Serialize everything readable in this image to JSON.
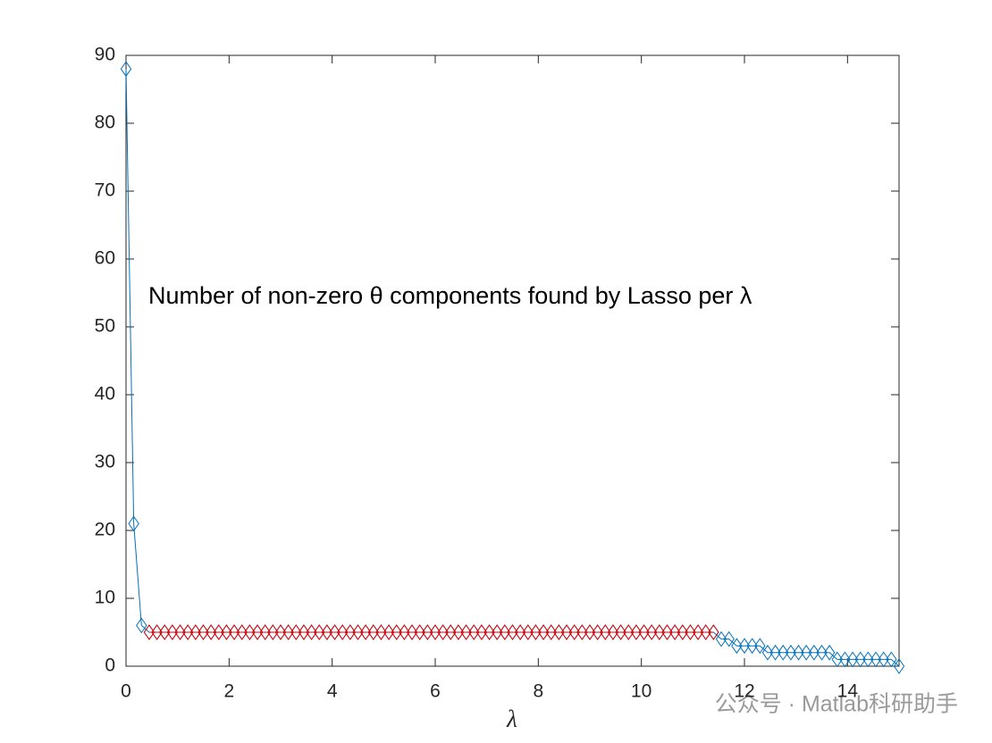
{
  "chart_data": {
    "type": "line",
    "annotation": "Number of non-zero θ components found by Lasso per λ",
    "x_label": "λ",
    "watermark": "公众号 · Matlab科研助手",
    "x": [
      0,
      0.15,
      0.3,
      0.45,
      0.6,
      0.75,
      0.9,
      1.05,
      1.2,
      1.35,
      1.5,
      1.65,
      1.8,
      1.95,
      2.1,
      2.25,
      2.4,
      2.55,
      2.7,
      2.85,
      3,
      3.15,
      3.3,
      3.45,
      3.6,
      3.75,
      3.9,
      4.05,
      4.2,
      4.35,
      4.5,
      4.65,
      4.8,
      4.95,
      5.1,
      5.25,
      5.4,
      5.55,
      5.7,
      5.85,
      6,
      6.15,
      6.3,
      6.45,
      6.6,
      6.75,
      6.9,
      7.05,
      7.2,
      7.35,
      7.5,
      7.65,
      7.8,
      7.95,
      8.1,
      8.25,
      8.4,
      8.55,
      8.7,
      8.85,
      9,
      9.15,
      9.3,
      9.45,
      9.6,
      9.75,
      9.9,
      10.05,
      10.2,
      10.35,
      10.5,
      10.65,
      10.8,
      10.95,
      11.1,
      11.25,
      11.4,
      11.55,
      11.7,
      11.85,
      12,
      12.15,
      12.3,
      12.45,
      12.6,
      12.75,
      12.9,
      13.05,
      13.2,
      13.35,
      13.5,
      13.65,
      13.8,
      13.95,
      14.1,
      14.25,
      14.4,
      14.55,
      14.7,
      14.85,
      15
    ],
    "series": [
      {
        "color": "#0072bd",
        "values": [
          88,
          21,
          6,
          5,
          5,
          5,
          5,
          5,
          5,
          5,
          5,
          5,
          5,
          5,
          5,
          5,
          5,
          5,
          5,
          5,
          5,
          5,
          5,
          5,
          5,
          5,
          5,
          5,
          5,
          5,
          5,
          5,
          5,
          5,
          5,
          5,
          5,
          5,
          5,
          5,
          5,
          5,
          5,
          5,
          5,
          5,
          5,
          5,
          5,
          5,
          5,
          5,
          5,
          5,
          5,
          5,
          5,
          5,
          5,
          5,
          5,
          5,
          5,
          5,
          5,
          5,
          5,
          5,
          5,
          5,
          5,
          5,
          5,
          5,
          5,
          5,
          5,
          4,
          4,
          3,
          3,
          3,
          3,
          2,
          2,
          2,
          2,
          2,
          2,
          2,
          2,
          2,
          1,
          1,
          1,
          1,
          1,
          1,
          1,
          1,
          0
        ]
      },
      {
        "color": "#e00000",
        "values": [
          null,
          null,
          null,
          5,
          5,
          5,
          5,
          5,
          5,
          5,
          5,
          5,
          5,
          5,
          5,
          5,
          5,
          5,
          5,
          5,
          5,
          5,
          5,
          5,
          5,
          5,
          5,
          5,
          5,
          5,
          5,
          5,
          5,
          5,
          5,
          5,
          5,
          5,
          5,
          5,
          5,
          5,
          5,
          5,
          5,
          5,
          5,
          5,
          5,
          5,
          5,
          5,
          5,
          5,
          5,
          5,
          5,
          5,
          5,
          5,
          5,
          5,
          5,
          5,
          5,
          5,
          5,
          5,
          5,
          5,
          5,
          5,
          5,
          5,
          5,
          5,
          5,
          null,
          null,
          null,
          null,
          null,
          null,
          null,
          null,
          null,
          null,
          null,
          null,
          null,
          null,
          null,
          null,
          null,
          null,
          null,
          null,
          null,
          null,
          null,
          null
        ]
      }
    ],
    "xlim": [
      0,
      15
    ],
    "xticks": [
      0,
      2,
      4,
      6,
      8,
      10,
      12,
      14
    ],
    "ylim": [
      0,
      90
    ],
    "yticks": [
      0,
      10,
      20,
      30,
      40,
      50,
      60,
      70,
      80,
      90
    ],
    "marker": "diamond",
    "grid": false
  }
}
